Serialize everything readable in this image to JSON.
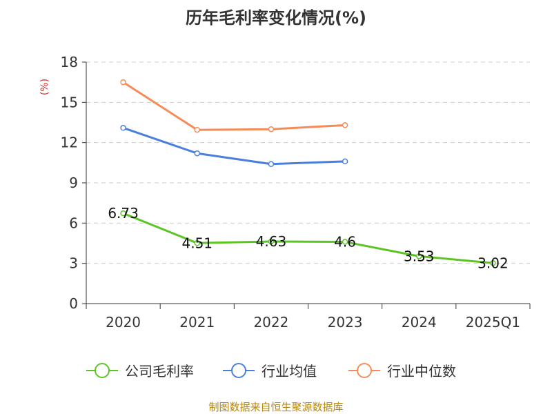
{
  "title": "历年毛利率变化情况(%)",
  "source": "制图数据来自恒生聚源数据库",
  "chart_data": {
    "type": "line",
    "title": "历年毛利率变化情况(%)",
    "ylabel": "(%)",
    "xlabel": "",
    "categories": [
      "2020",
      "2021",
      "2022",
      "2023",
      "2024",
      "2025Q1"
    ],
    "ylim": [
      0,
      18
    ],
    "yticks": [
      0,
      3,
      6,
      9,
      12,
      15,
      18
    ],
    "grid": true,
    "legend_position": "bottom",
    "series": [
      {
        "name": "公司毛利率",
        "color": "#5cc524",
        "values": [
          6.73,
          4.51,
          4.63,
          4.6,
          3.53,
          3.02
        ],
        "labels": [
          "6.73",
          "4.51",
          "4.63",
          "4.6",
          "3.53",
          "3.02"
        ]
      },
      {
        "name": "行业均值",
        "color": "#4a7fdc",
        "values": [
          13.1,
          11.2,
          10.4,
          10.6,
          null,
          null
        ]
      },
      {
        "name": "行业中位数",
        "color": "#f68b57",
        "values": [
          16.5,
          12.95,
          13.0,
          13.3,
          null,
          null
        ]
      }
    ]
  }
}
